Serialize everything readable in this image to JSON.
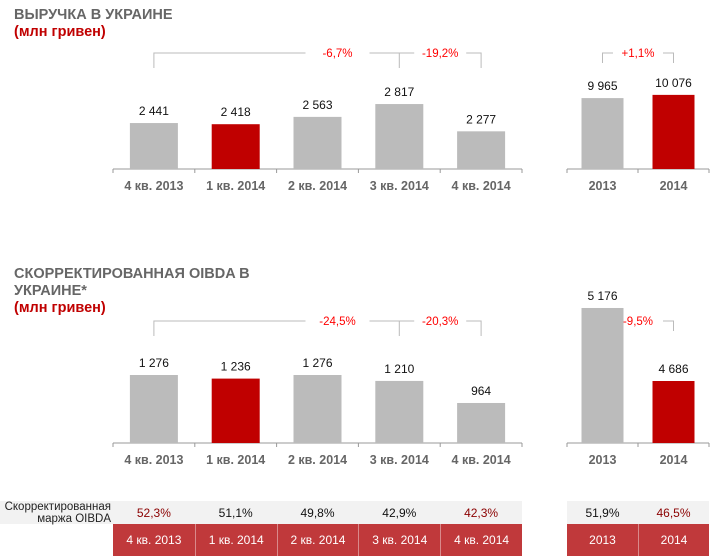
{
  "colors": {
    "grey_bar": "#bbbbbb",
    "red_bar": "#c00000",
    "title": "#666666",
    "accent": "#c00000",
    "change": "#ff0000",
    "table_header": "#c0393b",
    "table_light": "#f2f2f2"
  },
  "chart1": {
    "title": "ВЫРУЧКА В УКРАИНЕ",
    "subtitle": "(млн гривен)"
  },
  "chart2": {
    "title_line1": "СКОРРЕКТИРОВАННАЯ OIBDA В",
    "title_line2": "УКРАИНЕ*",
    "subtitle": "(млн гривен)"
  },
  "chart_data": [
    {
      "type": "bar",
      "title": "ВЫРУЧКА В УКРАИНЕ (млн гривен)",
      "panel": "quarterly",
      "categories": [
        "4 кв. 2013",
        "1 кв. 2014",
        "2 кв. 2014",
        "3 кв. 2014",
        "4 кв. 2014"
      ],
      "values": [
        2441,
        2418,
        2563,
        2817,
        2277
      ],
      "labels": [
        "2 441",
        "2 418",
        "2 563",
        "2 817",
        "2 277"
      ],
      "highlight": [
        false,
        true,
        false,
        false,
        false
      ],
      "changes": [
        {
          "label": "-6,7%",
          "from": "4 кв. 2013",
          "to": "4 кв. 2014"
        },
        {
          "label": "-19,2%",
          "from": "3 кв. 2014",
          "to": "4 кв. 2014"
        }
      ]
    },
    {
      "type": "bar",
      "title": "ВЫРУЧКА В УКРАИНЕ (млн гривен)",
      "panel": "annual",
      "categories": [
        "2013",
        "2014"
      ],
      "values": [
        9965,
        10076
      ],
      "labels": [
        "9 965",
        "10 076"
      ],
      "highlight": [
        false,
        true
      ],
      "changes": [
        {
          "label": "+1,1%",
          "from": "2013",
          "to": "2014"
        }
      ]
    },
    {
      "type": "bar",
      "title": "СКОРРЕКТИРОВАННАЯ OIBDA В УКРАИНЕ* (млн гривен)",
      "panel": "quarterly",
      "categories": [
        "4 кв. 2013",
        "1 кв. 2014",
        "2 кв. 2014",
        "3 кв. 2014",
        "4 кв. 2014"
      ],
      "values": [
        1276,
        1236,
        1276,
        1210,
        964
      ],
      "labels": [
        "1 276",
        "1 236",
        "1 276",
        "1 210",
        "964"
      ],
      "highlight": [
        false,
        true,
        false,
        false,
        false
      ],
      "changes": [
        {
          "label": "-24,5%",
          "from": "4 кв. 2013",
          "to": "4 кв. 2014"
        },
        {
          "label": "-20,3%",
          "from": "3 кв. 2014",
          "to": "4 кв. 2014"
        }
      ]
    },
    {
      "type": "bar",
      "title": "СКОРРЕКТИРОВАННАЯ OIBDA В УКРАИНЕ* (млн гривен)",
      "panel": "annual",
      "categories": [
        "2013",
        "2014"
      ],
      "values": [
        5176,
        4686
      ],
      "labels": [
        "5 176",
        "4 686"
      ],
      "highlight": [
        false,
        true
      ],
      "changes": [
        {
          "label": "-9,5%",
          "from": "2013",
          "to": "2014"
        }
      ]
    }
  ],
  "margin_table": {
    "row_label_line1": "Скорректированная",
    "row_label_line2": "маржа OIBDA",
    "quarterly": {
      "headers": [
        "4 кв. 2013",
        "1 кв. 2014",
        "2 кв. 2014",
        "3 кв. 2014",
        "4 кв. 2014"
      ],
      "values": [
        "52,3%",
        "51,1%",
        "49,8%",
        "42,9%",
        "42,3%"
      ],
      "highlight": [
        true,
        false,
        false,
        false,
        true
      ]
    },
    "annual": {
      "headers": [
        "2013",
        "2014"
      ],
      "values": [
        "51,9%",
        "46,5%"
      ],
      "highlight": [
        false,
        true
      ]
    }
  }
}
